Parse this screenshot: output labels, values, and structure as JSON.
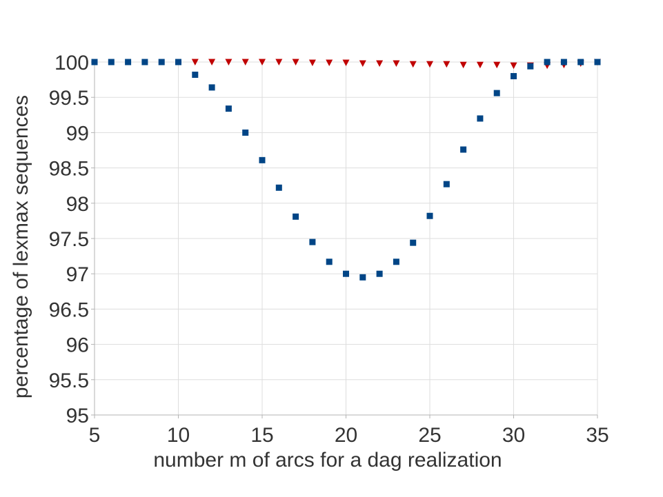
{
  "chart_data": {
    "type": "scatter",
    "title": "",
    "xlabel": "number m of arcs for a dag realization",
    "ylabel": "percentage of lexmax sequences",
    "xlim": [
      5,
      35
    ],
    "ylim": [
      95,
      100
    ],
    "xticks": [
      5,
      10,
      15,
      20,
      25,
      30,
      35
    ],
    "yticks": [
      95,
      95.5,
      96,
      96.5,
      97,
      97.5,
      98,
      98.5,
      99,
      99.5,
      100
    ],
    "grid": true,
    "series": [
      {
        "name": "series-triangles",
        "marker": "triangle-down",
        "color": "#c00000",
        "x": [
          11,
          12,
          13,
          14,
          15,
          16,
          17,
          18,
          19,
          20,
          21,
          22,
          23,
          24,
          25,
          26,
          27,
          28,
          29,
          30,
          31,
          32,
          33,
          34,
          35
        ],
        "y": [
          100,
          100,
          100,
          100,
          100,
          100,
          100,
          99.99,
          99.99,
          99.99,
          99.98,
          99.98,
          99.98,
          99.97,
          99.97,
          99.97,
          99.96,
          99.96,
          99.96,
          99.95,
          99.95,
          99.95,
          99.96,
          99.98,
          100
        ]
      },
      {
        "name": "series-squares",
        "marker": "square",
        "color": "#004586",
        "x": [
          5,
          6,
          7,
          8,
          9,
          10,
          11,
          12,
          13,
          14,
          15,
          16,
          17,
          18,
          19,
          20,
          21,
          22,
          23,
          24,
          25,
          26,
          27,
          28,
          29,
          30,
          31,
          32,
          33,
          34,
          35
        ],
        "y": [
          100,
          100,
          100,
          100,
          100,
          100,
          99.82,
          99.64,
          99.34,
          99.0,
          98.61,
          98.22,
          97.81,
          97.45,
          97.17,
          97.0,
          96.95,
          97.0,
          97.17,
          97.44,
          97.82,
          98.27,
          98.76,
          99.2,
          99.56,
          99.8,
          99.94,
          100,
          100,
          100,
          100
        ]
      }
    ]
  }
}
